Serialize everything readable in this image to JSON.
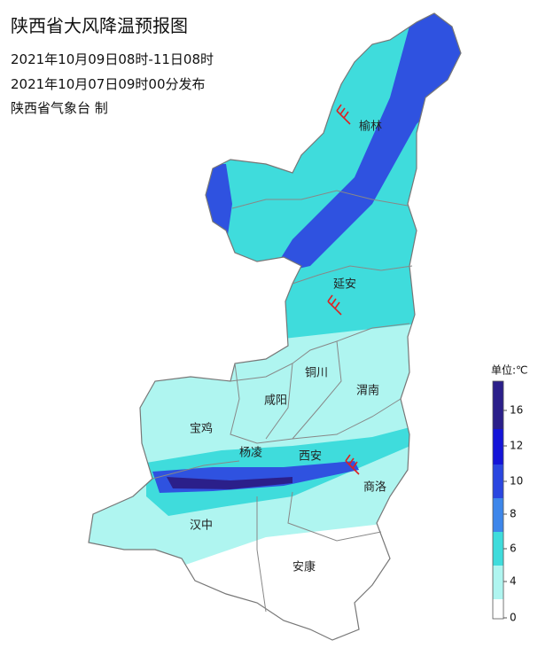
{
  "header": {
    "title": "陕西省大风降温预报图",
    "period": "2021年10月09日08时-11日08时",
    "issued": "2021年10月07日09时00分发布",
    "source": "陕西省气象台 制"
  },
  "cities": [
    {
      "label": "榆林"
    },
    {
      "label": "延安"
    },
    {
      "label": "铜川"
    },
    {
      "label": "渭南"
    },
    {
      "label": "咸阳"
    },
    {
      "label": "宝鸡"
    },
    {
      "label": "杨凌"
    },
    {
      "label": "西安"
    },
    {
      "label": "商洛"
    },
    {
      "label": "汉中"
    },
    {
      "label": "安康"
    }
  ],
  "legend": {
    "title": "单位:℃",
    "ticks": [
      "16",
      "12",
      "10",
      "8",
      "6",
      "4",
      "0"
    ]
  }
}
